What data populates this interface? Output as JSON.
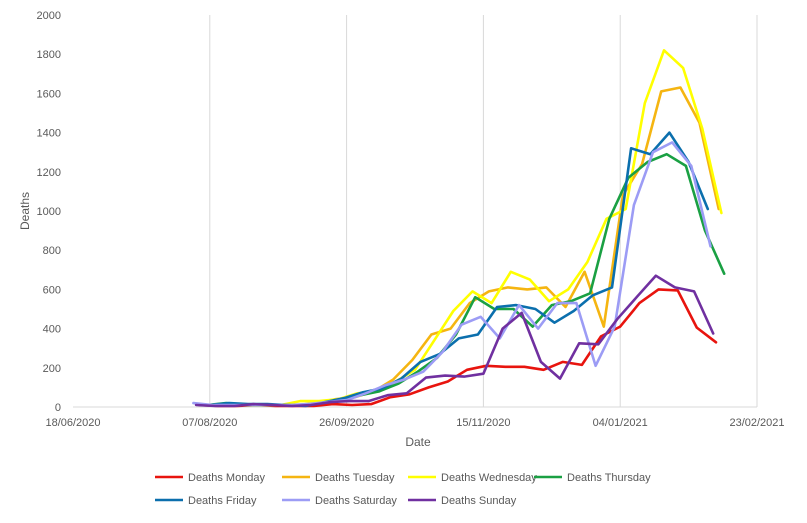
{
  "chart_data": {
    "type": "line",
    "title": "",
    "xlabel": "Date",
    "ylabel": "Deaths",
    "ylim": [
      0,
      2000
    ],
    "xlim": [
      "18/06/2020",
      "23/02/2021"
    ],
    "x_ticks": [
      "18/06/2020",
      "07/08/2020",
      "26/09/2020",
      "15/11/2020",
      "04/01/2021",
      "23/02/2021"
    ],
    "y_ticks": [
      "0",
      "200",
      "400",
      "600",
      "800",
      "1000",
      "1200",
      "1400",
      "1600",
      "1800",
      "2000"
    ],
    "grid": "vertical",
    "legend_position": "bottom",
    "series": [
      {
        "name": "Deaths Monday",
        "color": "#e8140e",
        "points": [
          [
            "03/08/2020",
            10
          ],
          [
            "10/08/2020",
            5
          ],
          [
            "17/08/2020",
            5
          ],
          [
            "24/08/2020",
            10
          ],
          [
            "31/08/2020",
            5
          ],
          [
            "07/09/2020",
            5
          ],
          [
            "14/09/2020",
            5
          ],
          [
            "21/09/2020",
            15
          ],
          [
            "28/09/2020",
            10
          ],
          [
            "05/10/2020",
            15
          ],
          [
            "12/10/2020",
            50
          ],
          [
            "19/10/2020",
            65
          ],
          [
            "26/10/2020",
            100
          ],
          [
            "02/11/2020",
            130
          ],
          [
            "09/11/2020",
            190
          ],
          [
            "16/11/2020",
            210
          ],
          [
            "23/11/2020",
            205
          ],
          [
            "30/11/2020",
            205
          ],
          [
            "07/12/2020",
            190
          ],
          [
            "14/12/2020",
            230
          ],
          [
            "21/12/2020",
            215
          ],
          [
            "28/12/2020",
            360
          ],
          [
            "04/01/2021",
            410
          ],
          [
            "11/01/2021",
            530
          ],
          [
            "18/01/2021",
            600
          ],
          [
            "25/01/2021",
            595
          ],
          [
            "01/02/2021",
            405
          ],
          [
            "08/02/2021",
            330
          ]
        ]
      },
      {
        "name": "Deaths Tuesday",
        "color": "#f5b511",
        "points": [
          [
            "04/08/2020",
            10
          ],
          [
            "11/08/2020",
            10
          ],
          [
            "18/08/2020",
            10
          ],
          [
            "25/08/2020",
            10
          ],
          [
            "01/09/2020",
            10
          ],
          [
            "08/09/2020",
            10
          ],
          [
            "15/09/2020",
            20
          ],
          [
            "22/09/2020",
            40
          ],
          [
            "29/09/2020",
            50
          ],
          [
            "06/10/2020",
            80
          ],
          [
            "13/10/2020",
            140
          ],
          [
            "20/10/2020",
            240
          ],
          [
            "27/10/2020",
            370
          ],
          [
            "03/11/2020",
            400
          ],
          [
            "10/11/2020",
            530
          ],
          [
            "17/11/2020",
            590
          ],
          [
            "24/11/2020",
            610
          ],
          [
            "01/12/2020",
            600
          ],
          [
            "08/12/2020",
            610
          ],
          [
            "15/12/2020",
            510
          ],
          [
            "22/12/2020",
            690
          ],
          [
            "29/12/2020",
            410
          ],
          [
            "05/01/2021",
            1080
          ],
          [
            "12/01/2021",
            1240
          ],
          [
            "19/01/2021",
            1610
          ],
          [
            "26/01/2021",
            1630
          ],
          [
            "02/02/2021",
            1450
          ],
          [
            "09/02/2021",
            1010
          ]
        ]
      },
      {
        "name": "Deaths Wednesday",
        "color": "#ffff00",
        "points": [
          [
            "05/08/2020",
            10
          ],
          [
            "12/08/2020",
            10
          ],
          [
            "19/08/2020",
            10
          ],
          [
            "26/08/2020",
            10
          ],
          [
            "02/09/2020",
            10
          ],
          [
            "09/09/2020",
            30
          ],
          [
            "16/09/2020",
            30
          ],
          [
            "23/09/2020",
            40
          ],
          [
            "30/09/2020",
            70
          ],
          [
            "07/10/2020",
            80
          ],
          [
            "14/10/2020",
            130
          ],
          [
            "21/10/2020",
            190
          ],
          [
            "28/10/2020",
            340
          ],
          [
            "04/11/2020",
            490
          ],
          [
            "11/11/2020",
            590
          ],
          [
            "18/11/2020",
            530
          ],
          [
            "25/11/2020",
            690
          ],
          [
            "02/12/2020",
            650
          ],
          [
            "09/12/2020",
            540
          ],
          [
            "16/12/2020",
            600
          ],
          [
            "23/12/2020",
            740
          ],
          [
            "30/12/2020",
            960
          ],
          [
            "06/01/2021",
            1010
          ],
          [
            "13/01/2021",
            1550
          ],
          [
            "20/01/2021",
            1820
          ],
          [
            "27/01/2021",
            1730
          ],
          [
            "03/02/2021",
            1420
          ],
          [
            "10/02/2021",
            990
          ]
        ]
      },
      {
        "name": "Deaths Thursday",
        "color": "#1aa043",
        "points": [
          [
            "06/08/2020",
            10
          ],
          [
            "13/08/2020",
            20
          ],
          [
            "20/08/2020",
            10
          ],
          [
            "27/08/2020",
            10
          ],
          [
            "03/09/2020",
            10
          ],
          [
            "10/09/2020",
            10
          ],
          [
            "17/09/2020",
            20
          ],
          [
            "24/09/2020",
            40
          ],
          [
            "01/10/2020",
            60
          ],
          [
            "08/10/2020",
            80
          ],
          [
            "15/10/2020",
            120
          ],
          [
            "22/10/2020",
            180
          ],
          [
            "29/10/2020",
            250
          ],
          [
            "05/11/2020",
            370
          ],
          [
            "12/11/2020",
            560
          ],
          [
            "19/11/2020",
            500
          ],
          [
            "26/11/2020",
            500
          ],
          [
            "03/12/2020",
            410
          ],
          [
            "10/12/2020",
            520
          ],
          [
            "17/12/2020",
            540
          ],
          [
            "24/12/2020",
            580
          ],
          [
            "31/12/2020",
            960
          ],
          [
            "07/01/2021",
            1170
          ],
          [
            "14/01/2021",
            1250
          ],
          [
            "21/01/2021",
            1290
          ],
          [
            "28/01/2021",
            1230
          ],
          [
            "04/02/2021",
            900
          ],
          [
            "11/02/2021",
            680
          ]
        ]
      },
      {
        "name": "Deaths Friday",
        "color": "#0b6fad",
        "points": [
          [
            "07/08/2020",
            10
          ],
          [
            "14/08/2020",
            20
          ],
          [
            "21/08/2020",
            15
          ],
          [
            "28/08/2020",
            15
          ],
          [
            "04/09/2020",
            10
          ],
          [
            "11/09/2020",
            5
          ],
          [
            "18/09/2020",
            25
          ],
          [
            "25/09/2020",
            45
          ],
          [
            "02/10/2020",
            75
          ],
          [
            "09/10/2020",
            95
          ],
          [
            "16/10/2020",
            145
          ],
          [
            "23/10/2020",
            230
          ],
          [
            "30/10/2020",
            270
          ],
          [
            "06/11/2020",
            350
          ],
          [
            "13/11/2020",
            370
          ],
          [
            "20/11/2020",
            510
          ],
          [
            "27/11/2020",
            520
          ],
          [
            "04/12/2020",
            500
          ],
          [
            "11/12/2020",
            430
          ],
          [
            "18/12/2020",
            490
          ],
          [
            "25/12/2020",
            570
          ],
          [
            "01/01/2021",
            610
          ],
          [
            "08/01/2021",
            1320
          ],
          [
            "15/01/2021",
            1290
          ],
          [
            "22/01/2021",
            1400
          ],
          [
            "29/01/2021",
            1250
          ],
          [
            "05/02/2021",
            1010
          ]
        ]
      },
      {
        "name": "Deaths Saturday",
        "color": "#9c9cf5",
        "points": [
          [
            "01/08/2020",
            20
          ],
          [
            "08/08/2020",
            10
          ],
          [
            "15/08/2020",
            10
          ],
          [
            "22/08/2020",
            10
          ],
          [
            "29/08/2020",
            10
          ],
          [
            "05/09/2020",
            10
          ],
          [
            "12/09/2020",
            15
          ],
          [
            "19/09/2020",
            25
          ],
          [
            "26/09/2020",
            35
          ],
          [
            "03/10/2020",
            70
          ],
          [
            "10/10/2020",
            110
          ],
          [
            "17/10/2020",
            140
          ],
          [
            "24/10/2020",
            180
          ],
          [
            "31/10/2020",
            280
          ],
          [
            "07/11/2020",
            420
          ],
          [
            "14/11/2020",
            460
          ],
          [
            "21/11/2020",
            350
          ],
          [
            "28/11/2020",
            520
          ],
          [
            "05/12/2020",
            400
          ],
          [
            "12/12/2020",
            530
          ],
          [
            "19/12/2020",
            530
          ],
          [
            "26/12/2020",
            210
          ],
          [
            "02/01/2021",
            410
          ],
          [
            "09/01/2021",
            1030
          ],
          [
            "16/01/2021",
            1300
          ],
          [
            "23/01/2021",
            1350
          ],
          [
            "30/01/2021",
            1230
          ],
          [
            "06/02/2021",
            820
          ]
        ]
      },
      {
        "name": "Deaths Sunday",
        "color": "#7030a0",
        "points": [
          [
            "02/08/2020",
            10
          ],
          [
            "09/08/2020",
            5
          ],
          [
            "16/08/2020",
            5
          ],
          [
            "23/08/2020",
            15
          ],
          [
            "30/08/2020",
            10
          ],
          [
            "06/09/2020",
            5
          ],
          [
            "13/09/2020",
            10
          ],
          [
            "20/09/2020",
            25
          ],
          [
            "27/09/2020",
            30
          ],
          [
            "04/10/2020",
            30
          ],
          [
            "11/10/2020",
            60
          ],
          [
            "18/10/2020",
            70
          ],
          [
            "25/10/2020",
            150
          ],
          [
            "01/11/2020",
            160
          ],
          [
            "08/11/2020",
            155
          ],
          [
            "15/11/2020",
            170
          ],
          [
            "22/11/2020",
            400
          ],
          [
            "29/11/2020",
            480
          ],
          [
            "06/12/2020",
            230
          ],
          [
            "13/12/2020",
            145
          ],
          [
            "20/12/2020",
            325
          ],
          [
            "27/12/2020",
            320
          ],
          [
            "03/01/2021",
            450
          ],
          [
            "10/01/2021",
            560
          ],
          [
            "17/01/2021",
            670
          ],
          [
            "24/01/2021",
            610
          ],
          [
            "31/01/2021",
            590
          ],
          [
            "07/02/2021",
            375
          ]
        ]
      }
    ]
  }
}
